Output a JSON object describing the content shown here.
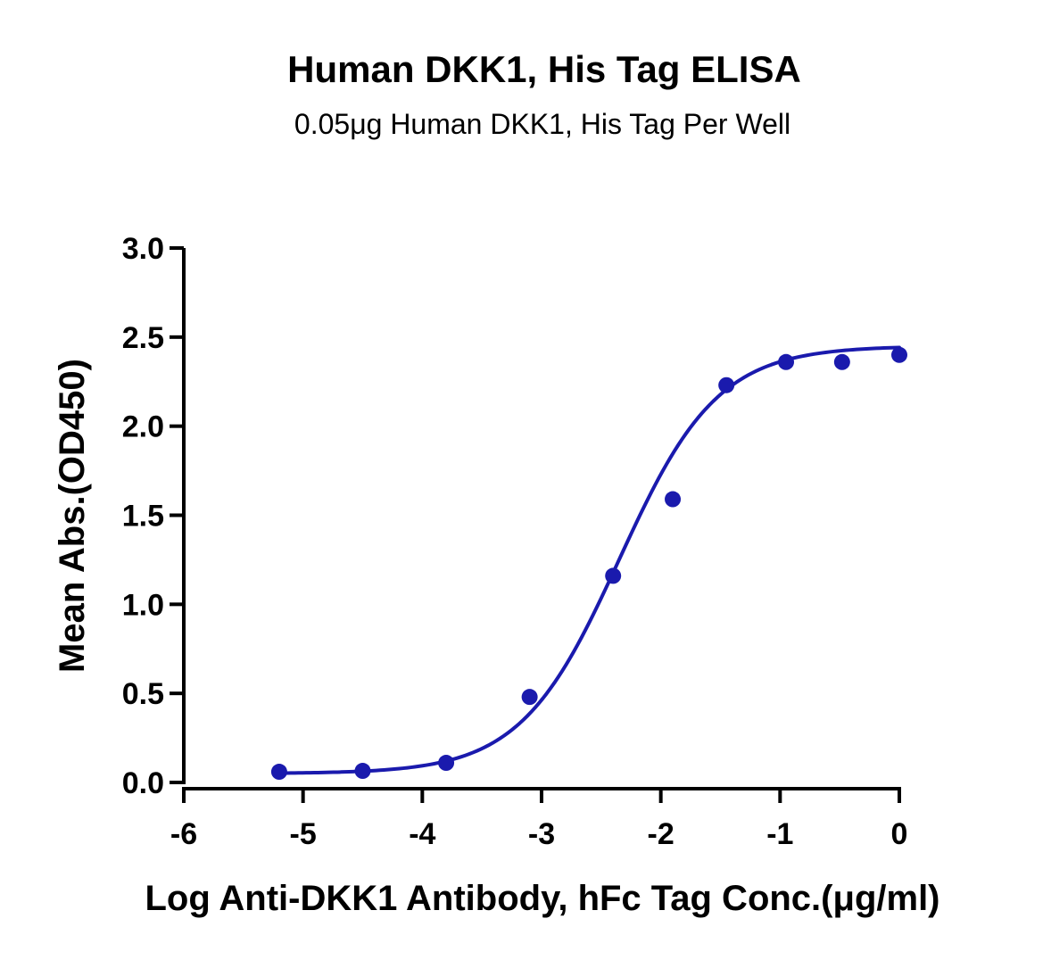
{
  "chart_data": {
    "type": "scatter",
    "title": "Human DKK1, His Tag ELISA",
    "subtitle": "0.05μg Human DKK1, His Tag Per Well",
    "xlabel": "Log Anti-DKK1 Antibody, hFc Tag Conc.(μg/ml)",
    "ylabel": "Mean Abs.(OD450)",
    "xlim": [
      -6,
      0
    ],
    "ylim": [
      0,
      3.0
    ],
    "x_ticks": [
      -6,
      -5,
      -4,
      -3,
      -2,
      -1,
      0
    ],
    "x_tick_labels": [
      "-6",
      "-5",
      "-4",
      "-3",
      "-2",
      "-1",
      "0"
    ],
    "y_ticks": [
      0,
      0.5,
      1.0,
      1.5,
      2.0,
      2.5,
      3.0
    ],
    "y_tick_labels": [
      "0.0",
      "0.5",
      "1.0",
      "1.5",
      "2.0",
      "2.5",
      "3.0"
    ],
    "grid": false,
    "legend": "none",
    "color": "#1a1aad",
    "series": [
      {
        "points": [
          {
            "x": -5.2,
            "y": 0.06
          },
          {
            "x": -4.5,
            "y": 0.065
          },
          {
            "x": -3.8,
            "y": 0.11
          },
          {
            "x": -3.1,
            "y": 0.48
          },
          {
            "x": -2.4,
            "y": 1.16
          },
          {
            "x": -1.9,
            "y": 1.59
          },
          {
            "x": -1.45,
            "y": 2.23
          },
          {
            "x": -0.95,
            "y": 2.36
          },
          {
            "x": -0.48,
            "y": 2.36
          },
          {
            "x": 0.0,
            "y": 2.4
          }
        ],
        "fit": {
          "model": "4PL",
          "bottom": 0.05,
          "top": 2.45,
          "log_ec50": -2.35,
          "hill_slope": 1.05,
          "x_start": -5.2,
          "x_end": 0.0
        }
      }
    ]
  }
}
